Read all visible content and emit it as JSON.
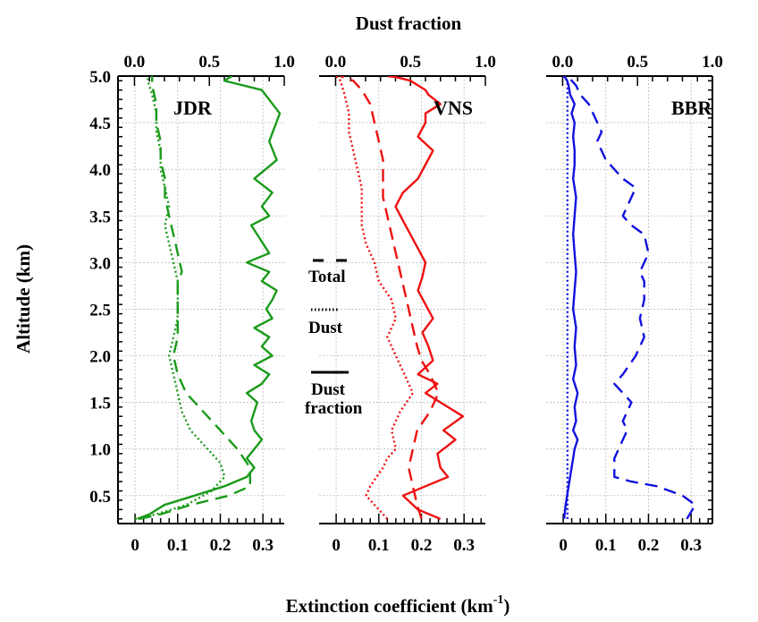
{
  "chart_data": {
    "type": "line",
    "top_axis_label": "Dust fraction",
    "bottom_axis_label": "Extinction coefficient (km",
    "bottom_axis_unit_sup": "-1",
    "bottom_axis_label_close": ")",
    "y_axis_label": "Altitude (km)",
    "ylim": [
      0.2,
      5.0
    ],
    "y_ticks": [
      "0.5",
      "1.0",
      "1.5",
      "2.0",
      "2.5",
      "3.0",
      "3.5",
      "4.0",
      "4.5",
      "5.0"
    ],
    "bottom_xlim": [
      -0.04,
      0.35
    ],
    "bottom_ticks": [
      "0",
      "0.1",
      "0.2",
      "0.3"
    ],
    "top_xlim": [
      -0.11,
      1.0
    ],
    "top_ticks": [
      "0.0",
      "0.5",
      "1.0"
    ],
    "grid": true,
    "legend": {
      "placement": "center-left of middle panel",
      "total_label": "Total",
      "dust_label": "Dust",
      "fraction_label_line1": "Dust",
      "fraction_label_line2": "fraction"
    },
    "panels": [
      {
        "name": "JDR",
        "color": "#1a9a1a",
        "series": [
          {
            "name": "Total",
            "style": "dashed",
            "axis": "bottom",
            "x": [
              0.01,
              0.06,
              0.13,
              0.22,
              0.27,
              0.27,
              0.24,
              0.2,
              0.16,
              0.12,
              0.1,
              0.09,
              0.1,
              0.1,
              0.1,
              0.1,
              0.11,
              0.1,
              0.09,
              0.08,
              0.07,
              0.07,
              0.06,
              0.06,
              0.05,
              0.05,
              0.04,
              0.04
            ],
            "y": [
              0.25,
              0.3,
              0.4,
              0.5,
              0.6,
              0.8,
              1.0,
              1.2,
              1.4,
              1.6,
              1.8,
              2.0,
              2.2,
              2.4,
              2.6,
              2.8,
              2.9,
              3.1,
              3.3,
              3.5,
              3.7,
              3.9,
              4.1,
              4.3,
              4.5,
              4.7,
              4.9,
              5.0
            ]
          },
          {
            "name": "Dust",
            "style": "dotted",
            "axis": "bottom",
            "x": [
              0.0,
              0.05,
              0.12,
              0.18,
              0.21,
              0.2,
              0.17,
              0.13,
              0.11,
              0.1,
              0.09,
              0.08,
              0.09,
              0.1,
              0.1,
              0.1,
              0.09,
              0.08,
              0.07,
              0.08,
              0.07,
              0.06,
              0.06,
              0.05,
              0.05,
              0.04,
              0.03,
              0.03
            ],
            "y": [
              0.25,
              0.3,
              0.4,
              0.55,
              0.7,
              0.85,
              1.0,
              1.2,
              1.4,
              1.6,
              1.8,
              2.0,
              2.2,
              2.4,
              2.6,
              2.8,
              3.0,
              3.2,
              3.4,
              3.6,
              3.8,
              4.0,
              4.2,
              4.4,
              4.6,
              4.8,
              4.95,
              5.0
            ]
          },
          {
            "name": "Dust fraction",
            "style": "solid",
            "axis": "top",
            "x": [
              0.02,
              0.1,
              0.2,
              0.4,
              0.6,
              0.75,
              0.8,
              0.75,
              0.8,
              0.85,
              0.8,
              0.78,
              0.8,
              0.82,
              0.75,
              0.85,
              0.9,
              0.8,
              0.92,
              0.85,
              0.9,
              0.8,
              0.92,
              0.88,
              0.92,
              0.95,
              0.85,
              0.9,
              0.75,
              0.9,
              0.82,
              0.78,
              0.9,
              0.85,
              0.92,
              0.8,
              0.95,
              0.9,
              0.97,
              0.85,
              0.6,
              0.65
            ],
            "y": [
              0.25,
              0.3,
              0.4,
              0.5,
              0.6,
              0.7,
              0.8,
              0.9,
              1.0,
              1.1,
              1.2,
              1.3,
              1.4,
              1.5,
              1.6,
              1.7,
              1.8,
              1.9,
              2.0,
              2.1,
              2.2,
              2.3,
              2.4,
              2.5,
              2.6,
              2.7,
              2.8,
              2.9,
              3.0,
              3.1,
              3.3,
              3.4,
              3.5,
              3.6,
              3.75,
              3.9,
              4.1,
              4.3,
              4.6,
              4.85,
              4.95,
              5.0
            ]
          }
        ]
      },
      {
        "name": "VNS",
        "color": "#ee1111",
        "series": [
          {
            "name": "Total",
            "style": "dashed",
            "axis": "bottom",
            "x": [
              0.2,
              0.19,
              0.18,
              0.17,
              0.18,
              0.19,
              0.22,
              0.24,
              0.22,
              0.2,
              0.19,
              0.18,
              0.17,
              0.16,
              0.15,
              0.14,
              0.13,
              0.12,
              0.11,
              0.11,
              0.11,
              0.1,
              0.09,
              0.08,
              0.06,
              0.04,
              0.01
            ],
            "y": [
              0.25,
              0.4,
              0.6,
              0.8,
              1.0,
              1.2,
              1.4,
              1.6,
              1.8,
              1.95,
              2.1,
              2.3,
              2.5,
              2.7,
              2.9,
              3.1,
              3.3,
              3.5,
              3.7,
              3.9,
              4.1,
              4.3,
              4.5,
              4.7,
              4.85,
              4.95,
              5.0
            ]
          },
          {
            "name": "Dust",
            "style": "dotted",
            "axis": "bottom",
            "x": [
              0.12,
              0.09,
              0.07,
              0.08,
              0.11,
              0.12,
              0.14,
              0.13,
              0.15,
              0.18,
              0.16,
              0.14,
              0.12,
              0.14,
              0.13,
              0.1,
              0.09,
              0.07,
              0.06,
              0.06,
              0.06,
              0.05,
              0.04,
              0.03,
              0.03,
              0.02,
              0.01,
              0.0
            ],
            "y": [
              0.25,
              0.4,
              0.5,
              0.6,
              0.8,
              0.9,
              1.0,
              1.2,
              1.4,
              1.6,
              1.8,
              2.0,
              2.2,
              2.4,
              2.6,
              2.8,
              3.0,
              3.2,
              3.4,
              3.6,
              3.8,
              4.0,
              4.2,
              4.4,
              4.6,
              4.8,
              4.95,
              5.0
            ]
          },
          {
            "name": "Dust fraction",
            "style": "solid",
            "axis": "top",
            "x": [
              0.7,
              0.55,
              0.45,
              0.6,
              0.75,
              0.7,
              0.68,
              0.8,
              0.72,
              0.85,
              0.7,
              0.6,
              0.68,
              0.55,
              0.65,
              0.62,
              0.58,
              0.65,
              0.6,
              0.55,
              0.58,
              0.6,
              0.55,
              0.5,
              0.45,
              0.4,
              0.45,
              0.55,
              0.6,
              0.65,
              0.55,
              0.6,
              0.6,
              0.7,
              0.62,
              0.6,
              0.55,
              0.5,
              0.45,
              0.4,
              0.35
            ],
            "y": [
              0.25,
              0.35,
              0.5,
              0.6,
              0.7,
              0.8,
              0.95,
              1.1,
              1.2,
              1.35,
              1.5,
              1.6,
              1.7,
              1.8,
              1.95,
              2.1,
              2.25,
              2.4,
              2.55,
              2.7,
              2.85,
              3.0,
              3.15,
              3.3,
              3.45,
              3.6,
              3.75,
              3.9,
              4.05,
              4.2,
              4.35,
              4.5,
              4.6,
              4.7,
              4.8,
              4.85,
              4.9,
              4.95,
              4.97,
              4.99,
              5.0
            ]
          }
        ]
      },
      {
        "name": "BBR",
        "color": "#1111dd",
        "series": [
          {
            "name": "Total",
            "style": "dashed",
            "axis": "bottom",
            "x": [
              0.29,
              0.31,
              0.28,
              0.22,
              0.16,
              0.12,
              0.12,
              0.13,
              0.15,
              0.14,
              0.16,
              0.14,
              0.12,
              0.14,
              0.17,
              0.19,
              0.18,
              0.19,
              0.19,
              0.18,
              0.2,
              0.19,
              0.16,
              0.14,
              0.15,
              0.16,
              0.17,
              0.14,
              0.12,
              0.1,
              0.09,
              0.08,
              0.09,
              0.07,
              0.06,
              0.04,
              0.03,
              0.02,
              0.01
            ],
            "y": [
              0.25,
              0.4,
              0.5,
              0.6,
              0.65,
              0.7,
              0.9,
              1.0,
              1.2,
              1.3,
              1.5,
              1.6,
              1.7,
              1.8,
              2.0,
              2.2,
              2.4,
              2.6,
              2.8,
              2.9,
              3.1,
              3.3,
              3.4,
              3.5,
              3.6,
              3.7,
              3.8,
              3.9,
              4.0,
              4.1,
              4.2,
              4.3,
              4.4,
              4.6,
              4.7,
              4.8,
              4.9,
              4.95,
              5.0
            ]
          },
          {
            "name": "Dust",
            "style": "dotted",
            "axis": "bottom",
            "x": [
              0.01,
              0.01,
              0.01,
              0.01,
              0.01,
              0.01,
              0.01,
              0.01,
              0.01,
              0.01,
              0.01,
              0.01,
              0.01,
              0.01,
              0.01,
              0.0
            ],
            "y": [
              0.25,
              0.6,
              1.0,
              1.4,
              1.8,
              2.2,
              2.6,
              3.0,
              3.4,
              3.8,
              4.2,
              4.5,
              4.7,
              4.85,
              4.95,
              5.0
            ]
          },
          {
            "name": "Dust fraction",
            "style": "solid",
            "axis": "top",
            "x": [
              0.01,
              0.02,
              0.04,
              0.05,
              0.07,
              0.08,
              0.1,
              0.07,
              0.09,
              0.08,
              0.1,
              0.07,
              0.09,
              0.08,
              0.09,
              0.07,
              0.08,
              0.09,
              0.08,
              0.07,
              0.08,
              0.09,
              0.07,
              0.08,
              0.08,
              0.07,
              0.08,
              0.06,
              0.08,
              0.05,
              0.04,
              0.03,
              0.01
            ],
            "y": [
              0.25,
              0.4,
              0.6,
              0.7,
              0.9,
              1.0,
              1.1,
              1.2,
              1.3,
              1.45,
              1.6,
              1.75,
              1.9,
              2.1,
              2.3,
              2.5,
              2.7,
              2.9,
              3.1,
              3.3,
              3.5,
              3.7,
              3.9,
              4.05,
              4.2,
              4.35,
              4.5,
              4.6,
              4.7,
              4.8,
              4.9,
              4.95,
              5.0
            ]
          }
        ]
      }
    ]
  }
}
